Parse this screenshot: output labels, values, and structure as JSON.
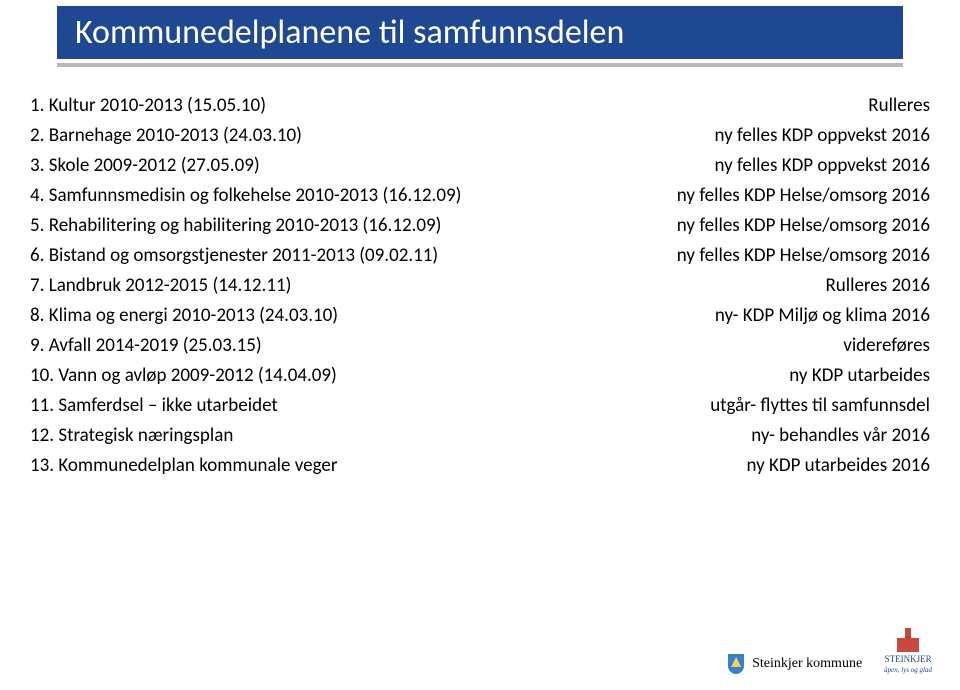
{
  "title": "Kommunedelplanene til samfunnsdelen",
  "rows": [
    {
      "left": "1.  Kultur 2010-2013 (15.05.10)",
      "right": "Rulleres"
    },
    {
      "left": "2.  Barnehage 2010-2013 (24.03.10)",
      "right": "ny felles KDP oppvekst 2016"
    },
    {
      "left": "3.  Skole 2009-2012  (27.05.09)",
      "right": "ny felles KDP oppvekst 2016"
    },
    {
      "left": "4.  Samfunnsmedisin og folkehelse 2010-2013 (16.12.09)",
      "right": "ny felles KDP Helse/omsorg 2016"
    },
    {
      "left": "5.  Rehabilitering og habilitering 2010-2013 (16.12.09)",
      "right": "ny felles KDP Helse/omsorg 2016"
    },
    {
      "left": "6.  Bistand og omsorgstjenester 2011-2013 (09.02.11)",
      "right": "ny felles KDP Helse/omsorg 2016"
    },
    {
      "left": "7.  Landbruk 2012-2015 (14.12.11)",
      "right": "Rulleres 2016"
    },
    {
      "left": "8.  Klima og energi 2010-2013 (24.03.10)",
      "right": "ny- KDP Miljø og klima 2016"
    },
    {
      "left": "9.  Avfall 2014-2019 (25.03.15)",
      "right": "videreføres"
    },
    {
      "left": "10. Vann og avløp 2009-2012 (14.04.09)",
      "right": "ny KDP utarbeides"
    },
    {
      "left": "11. Samferdsel – ikke utarbeidet",
      "right": "utgår- flyttes til samfunnsdel"
    },
    {
      "left": "12. Strategisk næringsplan",
      "right": "ny- behandles vår 2016"
    },
    {
      "left": "13. Kommunedelplan kommunale veger",
      "right": "ny KDP utarbeides 2016"
    }
  ],
  "footer": {
    "logo1_text": "Steinkjer kommune",
    "logo2_name": "STEINKJER",
    "logo2_tag": "åpen, lys og glad"
  }
}
